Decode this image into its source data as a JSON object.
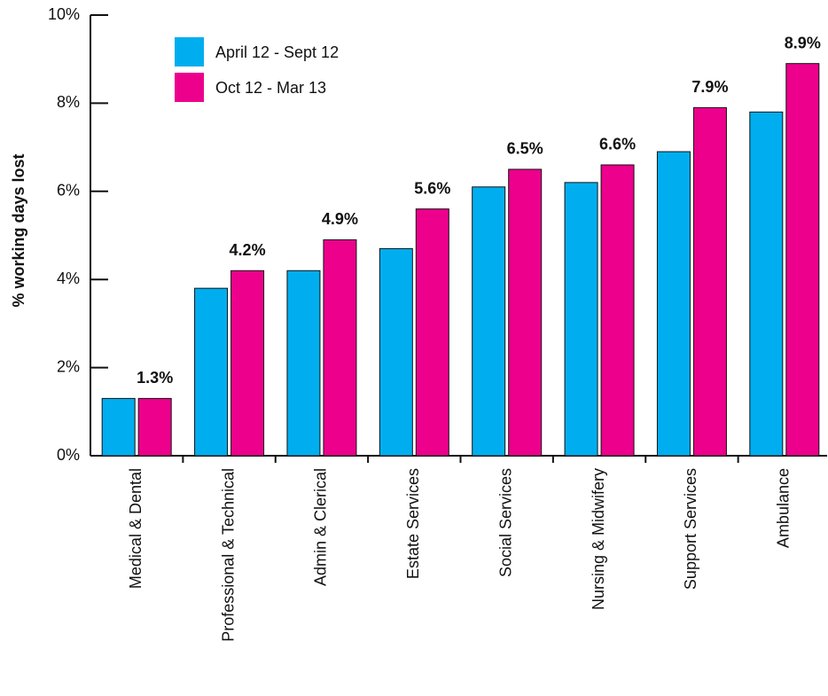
{
  "chart_data": {
    "type": "bar",
    "y_label": "% working days lost",
    "categories": [
      "Medical & Dental",
      "Professional & Technical",
      "Admin & Clerical",
      "Estate Services",
      "Social Services",
      "Nursing & Midwifery",
      "Support Services",
      "Ambulance"
    ],
    "series": [
      {
        "name": "April 12 - Sept 12",
        "color": "#00aeef",
        "values": [
          1.3,
          3.8,
          4.2,
          4.7,
          6.1,
          6.2,
          6.9,
          7.8
        ]
      },
      {
        "name": "Oct 12 - Mar 13",
        "color": "#ec008c",
        "values": [
          1.3,
          4.2,
          4.9,
          5.6,
          6.5,
          6.6,
          7.9,
          8.9
        ],
        "value_labels": [
          "1.3%",
          "4.2%",
          "4.9%",
          "5.6%",
          "6.5%",
          "6.6%",
          "7.9%",
          "8.9%"
        ]
      }
    ],
    "ylim": [
      0,
      10
    ],
    "yticks": [
      {
        "value": 0,
        "label": "0%"
      },
      {
        "value": 2,
        "label": "2%"
      },
      {
        "value": 4,
        "label": "4%"
      },
      {
        "value": 6,
        "label": "6%"
      },
      {
        "value": 8,
        "label": "8%"
      },
      {
        "value": 10,
        "label": "10%"
      }
    ],
    "grid": false,
    "legend": "top-left"
  }
}
